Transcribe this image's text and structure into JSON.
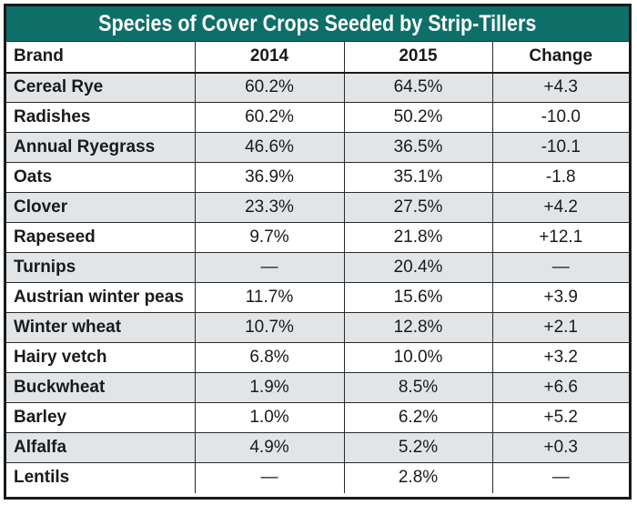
{
  "title": "Species of Cover Crops Seeded by Strip-Tillers",
  "chart_data": {
    "type": "table",
    "title": "Species of Cover Crops Seeded by Strip-Tillers",
    "columns": [
      "Brand",
      "2014",
      "2015",
      "Change"
    ],
    "rows": [
      [
        "Cereal Rye",
        "60.2%",
        "64.5%",
        "+4.3"
      ],
      [
        "Radishes",
        "60.2%",
        "50.2%",
        "-10.0"
      ],
      [
        "Annual Ryegrass",
        "46.6%",
        "36.5%",
        "-10.1"
      ],
      [
        "Oats",
        "36.9%",
        "35.1%",
        "-1.8"
      ],
      [
        "Clover",
        "23.3%",
        "27.5%",
        "+4.2"
      ],
      [
        "Rapeseed",
        "9.7%",
        "21.8%",
        "+12.1"
      ],
      [
        "Turnips",
        "—",
        "20.4%",
        "—"
      ],
      [
        "Austrian winter peas",
        "11.7%",
        "15.6%",
        "+3.9"
      ],
      [
        "Winter wheat",
        "10.7%",
        "12.8%",
        "+2.1"
      ],
      [
        "Hairy vetch",
        "6.8%",
        "10.0%",
        "+3.2"
      ],
      [
        "Buckwheat",
        "1.9%",
        "8.5%",
        "+6.6"
      ],
      [
        "Barley",
        "1.0%",
        "6.2%",
        "+5.2"
      ],
      [
        "Alfalfa",
        "4.9%",
        "5.2%",
        "+0.3"
      ],
      [
        "Lentils",
        "—",
        "2.8%",
        "—"
      ]
    ]
  },
  "colors": {
    "title_background": "#0e6e68",
    "title_text": "#ffffff",
    "row_shade": "#e1e5e7",
    "border": "#1a1a1a"
  }
}
